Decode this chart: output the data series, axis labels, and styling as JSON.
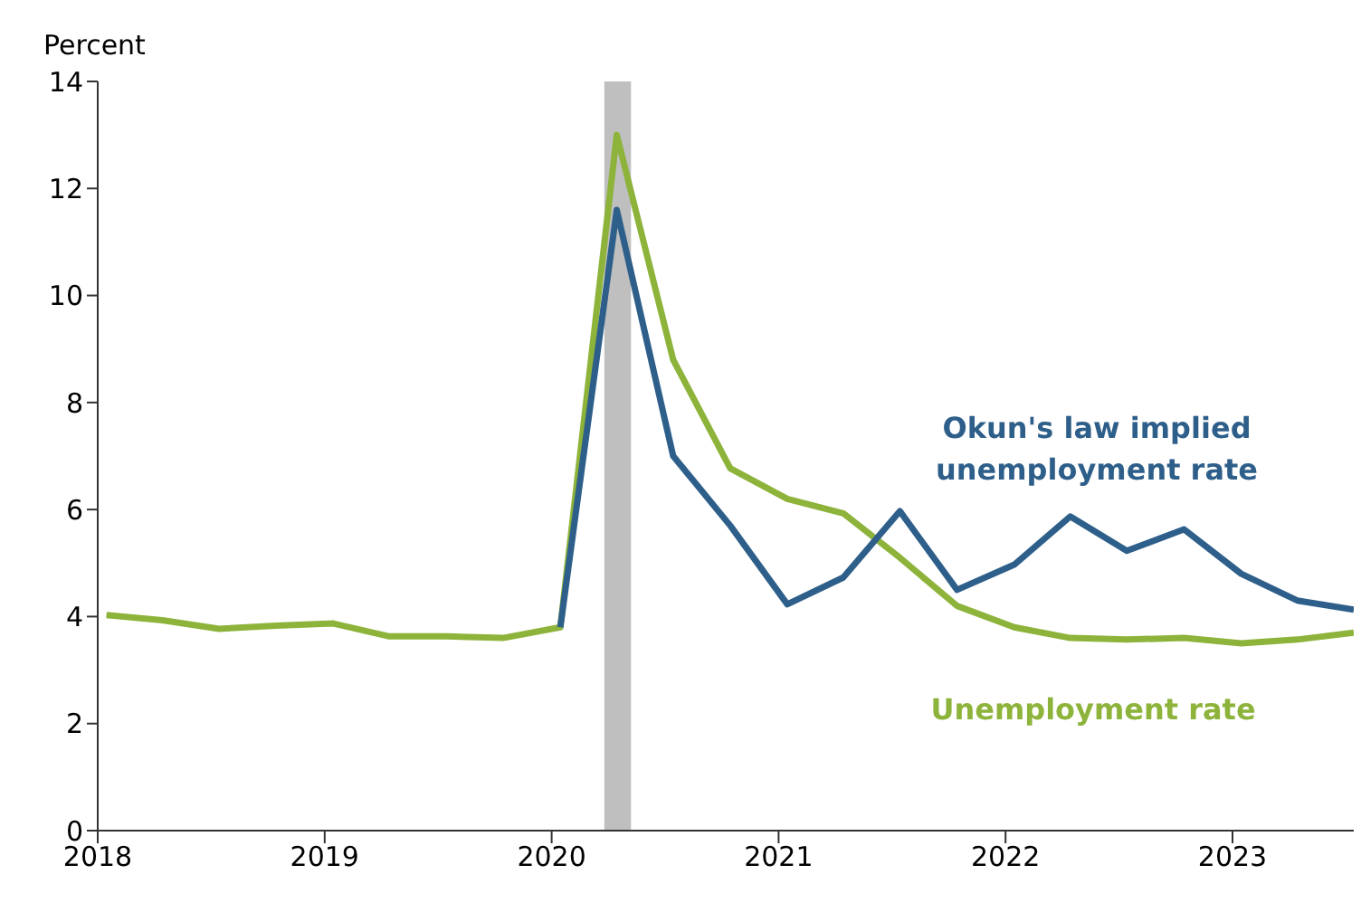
{
  "chart_data": {
    "type": "line",
    "ylabel": "Percent",
    "x": [
      "2018-01-15",
      "2018-04-15",
      "2018-07-15",
      "2018-10-15",
      "2019-01-15",
      "2019-04-15",
      "2019-07-15",
      "2019-10-15",
      "2020-01-15",
      "2020-04-15",
      "2020-07-15",
      "2020-10-15",
      "2021-01-15",
      "2021-04-15",
      "2021-07-15",
      "2021-10-15",
      "2022-01-15",
      "2022-04-15",
      "2022-07-15",
      "2022-10-15",
      "2023-01-15",
      "2023-04-15",
      "2023-07-15"
    ],
    "series": [
      {
        "name": "Okun's law implied unemployment rate",
        "color": "#2e5f8a",
        "values": [
          null,
          null,
          null,
          null,
          null,
          null,
          null,
          null,
          3.8,
          11.6,
          7.0,
          5.7,
          4.23,
          4.73,
          5.97,
          4.5,
          4.97,
          5.87,
          5.23,
          5.63,
          4.8,
          4.3,
          4.13
        ]
      },
      {
        "name": "Unemployment rate",
        "color": "#8db33a",
        "values": [
          4.03,
          3.93,
          3.77,
          3.83,
          3.87,
          3.63,
          3.63,
          3.6,
          3.8,
          13.0,
          8.8,
          6.77,
          6.2,
          5.93,
          5.1,
          4.2,
          3.8,
          3.6,
          3.57,
          3.6,
          3.5,
          3.57,
          3.7
        ]
      }
    ],
    "xlim": [
      "2018-01-01",
      "2023-07-15"
    ],
    "xticks": [
      "2018",
      "2019",
      "2020",
      "2021",
      "2022",
      "2023"
    ],
    "ylim": [
      0,
      14
    ],
    "yticks": [
      0,
      2,
      4,
      6,
      8,
      10,
      12,
      14
    ],
    "bands": [
      {
        "axis": "x",
        "from": "2020-03-26",
        "to": "2020-05-08",
        "color": "#bfbfbf"
      }
    ],
    "grid": false,
    "legend": false,
    "marker": "none",
    "line_style": "solid"
  }
}
